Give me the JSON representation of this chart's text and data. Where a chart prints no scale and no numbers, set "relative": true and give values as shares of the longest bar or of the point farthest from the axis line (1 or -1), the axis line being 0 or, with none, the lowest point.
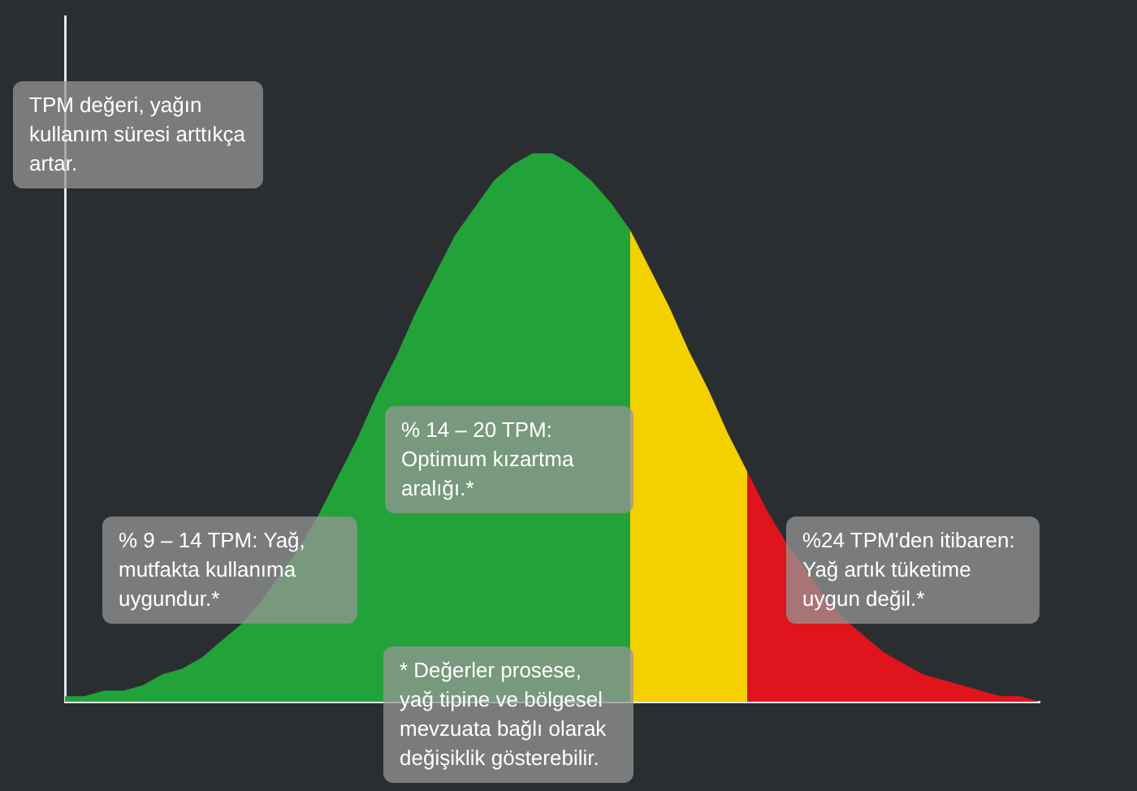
{
  "chart_data": {
    "type": "area",
    "relative": true,
    "grid": false,
    "legend": false,
    "tick_labels": false,
    "categories": [
      null,
      null,
      null,
      null,
      null,
      null,
      null,
      null,
      null,
      null,
      null,
      null,
      null,
      null,
      null,
      null,
      null,
      null,
      null,
      null,
      null,
      null,
      null,
      null,
      null,
      null,
      null,
      null,
      null,
      null,
      null,
      null,
      null,
      null,
      null,
      null,
      null,
      null,
      null,
      null,
      null,
      null,
      null,
      null,
      null,
      null,
      null,
      null,
      null,
      null,
      null
    ],
    "series": [
      {
        "color": "#22a33a",
        "values": [
          0.01,
          0.01,
          0.02,
          0.02,
          0.03,
          0.05,
          0.06,
          0.08,
          0.11,
          0.14,
          0.18,
          0.23,
          0.28,
          0.34,
          0.41,
          0.48,
          0.56,
          0.63,
          0.71,
          0.78,
          0.85,
          0.9,
          0.95,
          0.98,
          1.0,
          1.0,
          0.98,
          0.95,
          0.91,
          0.86,
          null,
          null,
          null,
          null,
          null,
          null,
          null,
          null,
          null,
          null,
          null,
          null,
          null,
          null,
          null,
          null,
          null,
          null,
          null,
          null,
          null
        ]
      },
      {
        "color": "#f5d000",
        "values": [
          null,
          null,
          null,
          null,
          null,
          null,
          null,
          null,
          null,
          null,
          null,
          null,
          null,
          null,
          null,
          null,
          null,
          null,
          null,
          null,
          null,
          null,
          null,
          null,
          null,
          null,
          null,
          null,
          null,
          0.86,
          0.79,
          0.72,
          0.64,
          0.57,
          0.49,
          0.42,
          null,
          null,
          null,
          null,
          null,
          null,
          null,
          null,
          null,
          null,
          null,
          null,
          null,
          null,
          null
        ]
      },
      {
        "color": "#e0141c",
        "values": [
          null,
          null,
          null,
          null,
          null,
          null,
          null,
          null,
          null,
          null,
          null,
          null,
          null,
          null,
          null,
          null,
          null,
          null,
          null,
          null,
          null,
          null,
          null,
          null,
          null,
          null,
          null,
          null,
          null,
          null,
          null,
          null,
          null,
          null,
          null,
          0.42,
          0.35,
          0.29,
          0.24,
          0.19,
          0.15,
          0.12,
          0.09,
          0.07,
          0.05,
          0.04,
          0.03,
          0.02,
          0.01,
          0.01,
          0
        ]
      }
    ],
    "annotations": [
      "TPM değeri, yağın kullanım süresi arttıkça artar.",
      "% 14 – 20 TPM: Optimum kızartma aralığı.*",
      "% 9 – 14 TPM: Yağ, mutfakta kullanıma uygundur.*",
      "%24 TPM'den itibaren: Yağ artık tüketime uygun değil.*",
      "* Değerler prosese, yağ tipine ve bölgesel mevzuata bağlı olarak değişiklik gösterebilir."
    ]
  }
}
